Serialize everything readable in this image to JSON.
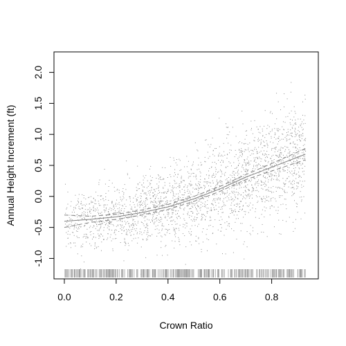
{
  "chart_data": {
    "type": "scatter",
    "xlabel": "Crown Ratio",
    "ylabel": "Annual Height Increment (ft)",
    "xlim": [
      -0.04,
      0.98
    ],
    "ylim": [
      -1.33,
      2.33
    ],
    "x_ticks": [
      "0.0",
      "0.2",
      "0.4",
      "0.6",
      "0.8"
    ],
    "y_ticks": [
      "-1.0",
      "-0.5",
      "0.0",
      "0.5",
      "1.0",
      "1.5",
      "2.0"
    ],
    "grid": false,
    "legend": "none",
    "smooth_fit": {
      "x": [
        0.0,
        0.1,
        0.2,
        0.3,
        0.4,
        0.5,
        0.6,
        0.7,
        0.8,
        0.93
      ],
      "y": [
        -0.4,
        -0.37,
        -0.33,
        -0.26,
        -0.17,
        -0.04,
        0.12,
        0.31,
        0.47,
        0.68
      ]
    },
    "confidence_band": {
      "upper": [
        -0.3,
        -0.32,
        -0.29,
        -0.22,
        -0.13,
        0.0,
        0.16,
        0.35,
        0.53,
        0.77
      ],
      "lower": [
        -0.5,
        -0.42,
        -0.37,
        -0.3,
        -0.21,
        -0.08,
        0.08,
        0.27,
        0.41,
        0.59
      ]
    },
    "point_cloud": {
      "approx_count": 2600,
      "x_range": [
        0.0,
        0.93
      ],
      "spread_sd": [
        0.22,
        0.45
      ]
    },
    "rug": {
      "x_range": [
        0.0,
        0.93
      ]
    },
    "colors": {
      "points": "#8c8c8c",
      "fit_line": "#808080",
      "band": "#808080",
      "rug": "#a0a0a0",
      "axis": "#000000"
    }
  }
}
